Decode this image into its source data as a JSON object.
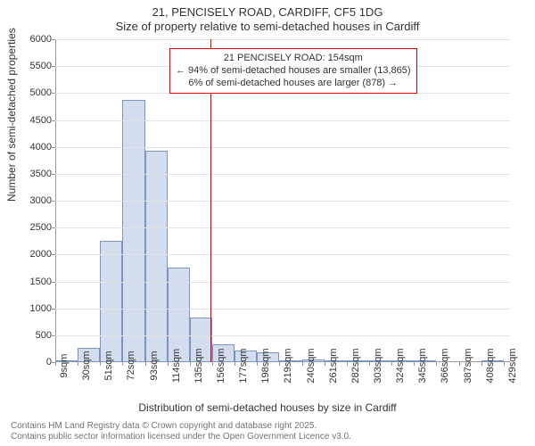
{
  "chart": {
    "type": "histogram",
    "title_line1": "21, PENCISELY ROAD, CARDIFF, CF5 1DG",
    "title_line2": "Size of property relative to semi-detached houses in Cardiff",
    "ylabel": "Number of semi-detached properties",
    "xlabel": "Distribution of semi-detached houses by size in Cardiff",
    "ylim": [
      0,
      6000
    ],
    "ytick_step": 500,
    "yticks": [
      0,
      500,
      1000,
      1500,
      2000,
      2500,
      3000,
      3500,
      4000,
      4500,
      5000,
      5500,
      6000
    ],
    "xticks": [
      9,
      30,
      51,
      72,
      93,
      114,
      135,
      156,
      177,
      198,
      219,
      240,
      261,
      282,
      303,
      324,
      345,
      366,
      387,
      408,
      429
    ],
    "xtick_suffix": "sqm",
    "xlim": [
      9,
      435
    ],
    "bar_color": "#d3ddee",
    "bar_border_color": "#7b94c4",
    "grid_color": "#e2e2e2",
    "background_color": "#ffffff",
    "axis_color": "#999999",
    "title_fontsize": 13,
    "label_fontsize": 12,
    "tick_fontsize": 11,
    "bars": [
      {
        "x0": 9,
        "x1": 30,
        "value": 40
      },
      {
        "x0": 30,
        "x1": 51,
        "value": 270
      },
      {
        "x0": 51,
        "x1": 72,
        "value": 2250
      },
      {
        "x0": 72,
        "x1": 93,
        "value": 4880
      },
      {
        "x0": 93,
        "x1": 114,
        "value": 3930
      },
      {
        "x0": 114,
        "x1": 135,
        "value": 1760
      },
      {
        "x0": 135,
        "x1": 156,
        "value": 830
      },
      {
        "x0": 156,
        "x1": 177,
        "value": 340
      },
      {
        "x0": 177,
        "x1": 198,
        "value": 210
      },
      {
        "x0": 198,
        "x1": 219,
        "value": 180
      },
      {
        "x0": 219,
        "x1": 240,
        "value": 40
      },
      {
        "x0": 240,
        "x1": 261,
        "value": 50
      },
      {
        "x0": 261,
        "x1": 282,
        "value": 30
      },
      {
        "x0": 282,
        "x1": 303,
        "value": 10
      },
      {
        "x0": 303,
        "x1": 324,
        "value": 5
      },
      {
        "x0": 324,
        "x1": 345,
        "value": 5
      },
      {
        "x0": 345,
        "x1": 366,
        "value": 5
      },
      {
        "x0": 366,
        "x1": 387,
        "value": 0
      },
      {
        "x0": 387,
        "x1": 408,
        "value": 0
      },
      {
        "x0": 408,
        "x1": 429,
        "value": 3
      }
    ],
    "reference_line": {
      "x": 154,
      "color": "#e00000"
    },
    "annotation": {
      "line1": "21 PENCISELY ROAD: 154sqm",
      "line2": "← 94% of semi-detached houses are smaller (13,865)",
      "line3": "6% of semi-detached houses are larger (878) →",
      "border_color": "#e00000",
      "x": 190,
      "ytop": 54,
      "fontsize": 11
    }
  },
  "footer": {
    "line1": "Contains HM Land Registry data © Crown copyright and database right 2025.",
    "line2": "Contains public sector information licensed under the Open Government Licence v3.0.",
    "color": "#737373",
    "fontsize": 10
  }
}
